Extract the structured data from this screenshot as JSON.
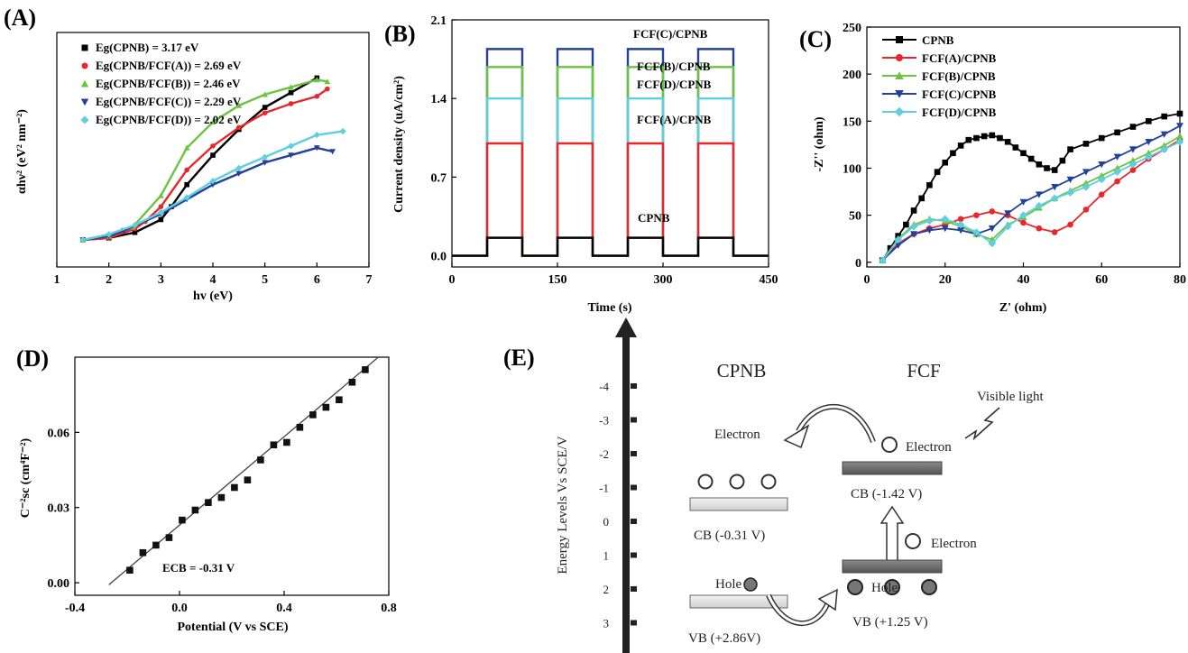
{
  "colors": {
    "black": "#000000",
    "red": "#e8262b",
    "green": "#6ac43e",
    "blue": "#23409a",
    "cyan": "#5fcfe0"
  },
  "chart_data": [
    {
      "id": "A",
      "panel_label": "(A)",
      "type": "line",
      "xlabel": "hv (eV)",
      "ylabel": "αhν² (eV² nm⁻²)",
      "xlim": [
        1,
        7
      ],
      "xticks": [
        1,
        2,
        3,
        4,
        5,
        6,
        7
      ],
      "series": [
        {
          "name": "Eg(CPNB) = 3.17 eV",
          "color": "#000000",
          "marker": "square",
          "x": [
            1.5,
            2,
            2.5,
            3,
            3.2,
            3.5,
            4,
            4.5,
            5,
            5.5,
            6
          ],
          "y": [
            0.02,
            0.03,
            0.06,
            0.13,
            0.2,
            0.32,
            0.48,
            0.62,
            0.74,
            0.82,
            0.9
          ]
        },
        {
          "name": "Eg(CPNB/FCF(A)) = 2.69 eV",
          "color": "#e8262b",
          "marker": "circle",
          "x": [
            1.5,
            2,
            2.5,
            2.7,
            3,
            3.5,
            4,
            4.5,
            5,
            5.5,
            6,
            6.2
          ],
          "y": [
            0.02,
            0.03,
            0.08,
            0.12,
            0.2,
            0.4,
            0.53,
            0.63,
            0.71,
            0.76,
            0.8,
            0.84
          ]
        },
        {
          "name": "Eg(CPNB/FCF(B)) = 2.46 eV",
          "color": "#6ac43e",
          "marker": "triangle-up",
          "x": [
            1.5,
            2,
            2.46,
            3,
            3.5,
            4,
            4.5,
            5,
            5.5,
            6,
            6.2
          ],
          "y": [
            0.02,
            0.04,
            0.09,
            0.26,
            0.52,
            0.66,
            0.75,
            0.81,
            0.85,
            0.89,
            0.88
          ]
        },
        {
          "name": "Eg(CPNB/FCF(C)) = 2.29 eV",
          "color": "#23409a",
          "marker": "triangle-down",
          "x": [
            1.5,
            2,
            2.29,
            3,
            3.5,
            4,
            4.5,
            5,
            5.5,
            6,
            6.3
          ],
          "y": [
            0.02,
            0.04,
            0.07,
            0.16,
            0.24,
            0.32,
            0.38,
            0.44,
            0.48,
            0.52,
            0.5
          ]
        },
        {
          "name": "Eg(CPNB/FCF(D)) = 2.02 eV",
          "color": "#5fcfe0",
          "marker": "diamond",
          "x": [
            1.5,
            2,
            2.5,
            3,
            3.5,
            4,
            4.5,
            5,
            5.5,
            6,
            6.5
          ],
          "y": [
            0.02,
            0.05,
            0.1,
            0.17,
            0.25,
            0.34,
            0.41,
            0.47,
            0.53,
            0.59,
            0.61
          ]
        }
      ]
    },
    {
      "id": "B",
      "panel_label": "(B)",
      "type": "line",
      "xlabel": "Time (s)",
      "ylabel": "Current density (uA/cm²)",
      "xlim": [
        0,
        450
      ],
      "ylim": [
        -0.1,
        2.1
      ],
      "xticks": [
        0,
        150,
        300,
        450
      ],
      "yticks": [
        0.0,
        0.7,
        1.4,
        2.1
      ],
      "on_off_cycles": [
        [
          50,
          100
        ],
        [
          150,
          200
        ],
        [
          250,
          300
        ],
        [
          350,
          400
        ]
      ],
      "series": [
        {
          "name": "FCF(C)/CPNB",
          "color": "#23409a",
          "on_value": 1.84
        },
        {
          "name": "FCF(B)/CPNB",
          "color": "#6ac43e",
          "on_value": 1.68
        },
        {
          "name": "FCF(D)/CPNB",
          "color": "#5fcfe0",
          "on_value": 1.4
        },
        {
          "name": "FCF(A)/CPNB",
          "color": "#e8262b",
          "on_value": 1.0
        },
        {
          "name": "CPNB",
          "color": "#000000",
          "on_value": 0.16
        }
      ]
    },
    {
      "id": "C",
      "panel_label": "(C)",
      "type": "scatter",
      "xlabel": "Z' (ohm)",
      "ylabel": "-Z'' (ohm)",
      "xlim": [
        0,
        80
      ],
      "ylim": [
        -5,
        250
      ],
      "xticks": [
        0,
        20,
        40,
        60,
        80
      ],
      "yticks": [
        0,
        50,
        100,
        150,
        200,
        250
      ],
      "series": [
        {
          "name": "CPNB",
          "color": "#000000",
          "marker": "square",
          "x": [
            4,
            6,
            8,
            10,
            12,
            14,
            16,
            18,
            20,
            22,
            24,
            26,
            28,
            30,
            32,
            34,
            36,
            38,
            40,
            42,
            44,
            46,
            48,
            50,
            52,
            56,
            60,
            64,
            68,
            72,
            76,
            80
          ],
          "y": [
            2,
            15,
            28,
            40,
            55,
            68,
            82,
            96,
            106,
            116,
            124,
            130,
            132,
            134,
            135,
            132,
            128,
            122,
            116,
            110,
            104,
            100,
            98,
            108,
            120,
            126,
            132,
            138,
            144,
            150,
            155,
            158
          ]
        },
        {
          "name": "FCF(A)/CPNB",
          "color": "#e8262b",
          "marker": "circle",
          "x": [
            4,
            8,
            12,
            16,
            20,
            24,
            28,
            32,
            36,
            40,
            44,
            48,
            52,
            56,
            60,
            64,
            68,
            72,
            76,
            80
          ],
          "y": [
            2,
            20,
            30,
            36,
            40,
            46,
            50,
            54,
            50,
            42,
            36,
            32,
            40,
            56,
            72,
            86,
            98,
            110,
            120,
            130
          ]
        },
        {
          "name": "FCF(B)/CPNB",
          "color": "#6ac43e",
          "marker": "triangle-up",
          "x": [
            4,
            8,
            12,
            16,
            20,
            24,
            28,
            32,
            36,
            40,
            44,
            48,
            52,
            56,
            60,
            64,
            68,
            72,
            76,
            80
          ],
          "y": [
            2,
            25,
            40,
            46,
            44,
            38,
            30,
            24,
            40,
            48,
            58,
            68,
            76,
            84,
            92,
            100,
            108,
            116,
            124,
            134
          ]
        },
        {
          "name": "FCF(C)/CPNB",
          "color": "#23409a",
          "marker": "triangle-down",
          "x": [
            4,
            8,
            12,
            16,
            20,
            24,
            28,
            32,
            36,
            40,
            44,
            48,
            52,
            56,
            60,
            64,
            68,
            72,
            76,
            80
          ],
          "y": [
            2,
            18,
            30,
            34,
            36,
            34,
            30,
            36,
            52,
            64,
            72,
            80,
            88,
            96,
            104,
            112,
            120,
            128,
            136,
            145
          ]
        },
        {
          "name": "FCF(D)/CPNB",
          "color": "#5fcfe0",
          "marker": "diamond",
          "x": [
            4,
            8,
            12,
            16,
            20,
            24,
            28,
            32,
            36,
            40,
            44,
            48,
            52,
            56,
            60,
            64,
            68,
            72,
            76,
            80
          ],
          "y": [
            2,
            24,
            38,
            44,
            46,
            40,
            32,
            20,
            38,
            50,
            60,
            68,
            74,
            80,
            88,
            96,
            104,
            112,
            120,
            128
          ]
        }
      ]
    },
    {
      "id": "D",
      "panel_label": "(D)",
      "type": "scatter",
      "xlabel": "Potential (V vs SCE)",
      "ylabel": "C⁻²sc (cm⁴F⁻²)",
      "xlim": [
        -0.4,
        0.8
      ],
      "ylim": [
        -0.005,
        0.09
      ],
      "xticks": [
        -0.4,
        0.0,
        0.4,
        0.8
      ],
      "yticks": [
        0.0,
        0.03,
        0.06
      ],
      "annotation": "ECB = -0.31 V",
      "x": [
        -0.19,
        -0.14,
        -0.09,
        -0.04,
        0.01,
        0.06,
        0.11,
        0.16,
        0.21,
        0.26,
        0.31,
        0.36,
        0.41,
        0.46,
        0.51,
        0.56,
        0.61,
        0.66,
        0.71
      ],
      "y": [
        0.005,
        0.012,
        0.015,
        0.018,
        0.025,
        0.029,
        0.032,
        0.034,
        0.038,
        0.041,
        0.049,
        0.055,
        0.056,
        0.062,
        0.067,
        0.07,
        0.073,
        0.08,
        0.085
      ],
      "fit": {
        "x": [
          -0.27,
          0.76
        ],
        "y": [
          -0.0008,
          0.09
        ]
      }
    }
  ],
  "panelE": {
    "label": "(E)",
    "axis_label": "Energy Levels Vs SCE/V",
    "ticks": [
      "-4",
      "-3",
      "-2",
      "-1",
      "0",
      "1",
      "2",
      "3"
    ],
    "cpnb_title": "CPNB",
    "fcf_title": "FCF",
    "light": "Visible light",
    "electron": "Electron",
    "hole": "Hole",
    "cpnb_cb": "CB (-0.31 V)",
    "cpnb_vb": "VB (+2.86V)",
    "fcf_cb": "CB (-1.42 V)",
    "fcf_vb": "VB (+1.25 V)"
  }
}
